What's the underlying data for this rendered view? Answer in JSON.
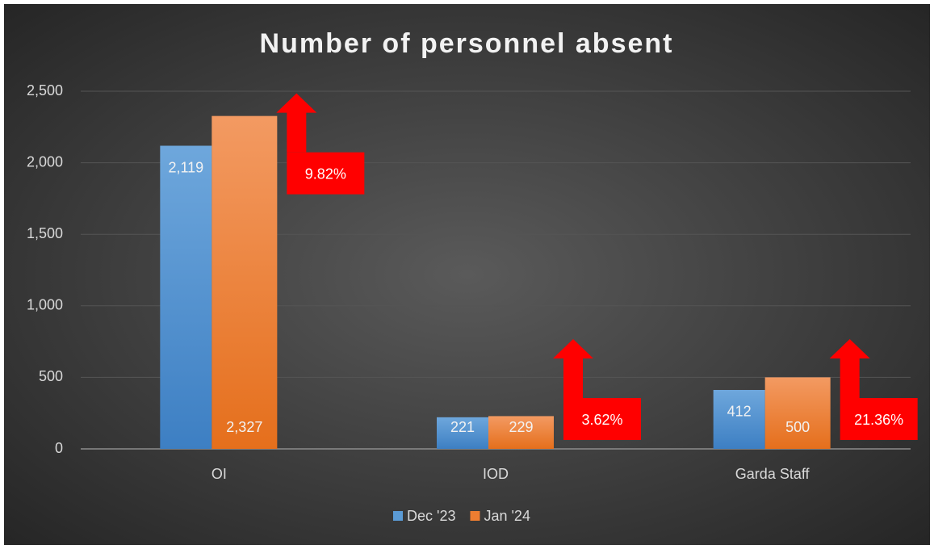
{
  "chart_data": {
    "type": "bar",
    "title": "Number of personnel absent",
    "categories": [
      "OI",
      "IOD",
      "Garda Staff"
    ],
    "series": [
      {
        "name": "Dec '23",
        "color": "#5b9bd5",
        "values": [
          2119,
          221,
          412
        ],
        "value_labels": [
          "2,119",
          "221",
          "412"
        ]
      },
      {
        "name": "Jan '24",
        "color": "#ed7d31",
        "values": [
          2327,
          229,
          500
        ],
        "value_labels": [
          "2,327",
          "229",
          "500"
        ]
      }
    ],
    "annotations": [
      "9.82%",
      "3.62%",
      "21.36%"
    ],
    "annotation_color": "#ff0000",
    "ylim": [
      0,
      2500
    ],
    "yticks": [
      0,
      {
        "value": 500,
        "label": "500"
      },
      {
        "value": 1000,
        "label": "1,000"
      },
      {
        "value": 1500,
        "label": "1,500"
      },
      {
        "value": 2000,
        "label": "2,000"
      },
      {
        "value": 2500,
        "label": "2,500"
      }
    ],
    "grid": true,
    "legend": "bottom"
  }
}
